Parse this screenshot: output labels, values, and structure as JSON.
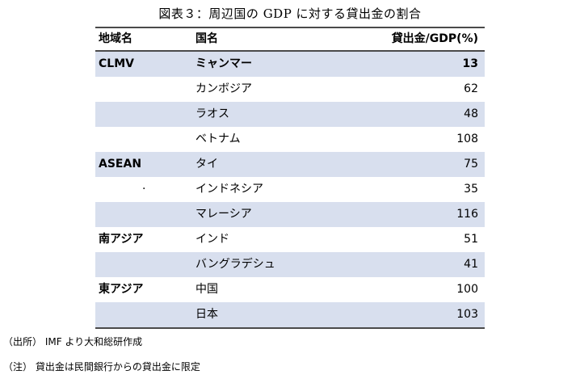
{
  "title": "図表３：周辺国の GDP に対する貸出金の割合",
  "table": {
    "headers": {
      "region": "地域名",
      "country": "国名",
      "ratio": "貸出金/GDP(%)"
    },
    "rows": [
      {
        "region": "CLMV",
        "country": "ミャンマー",
        "value": "13"
      },
      {
        "region": "",
        "country": "カンボジア",
        "value": "62"
      },
      {
        "region": "",
        "country": "ラオス",
        "value": "48"
      },
      {
        "region": "",
        "country": "ベトナム",
        "value": "108"
      },
      {
        "region": "ASEAN",
        "country": "タイ",
        "value": "75"
      },
      {
        "region": "·",
        "country": "インドネシア",
        "value": "35"
      },
      {
        "region": "",
        "country": "マレーシア",
        "value": "116"
      },
      {
        "region": "南アジア",
        "country": "インド",
        "value": "51"
      },
      {
        "region": "",
        "country": "バングラデシュ",
        "value": "41"
      },
      {
        "region": "東アジア",
        "country": "中国",
        "value": "100"
      },
      {
        "region": "",
        "country": "日本",
        "value": "103"
      }
    ]
  },
  "notes": {
    "source": "（出所） IMF より大和総研作成",
    "remark": "（注） 貸出金は民間銀行からの貸出金に限定"
  },
  "colors": {
    "shaded_row": "#d8dfee",
    "rule": "#4a4a4a"
  }
}
